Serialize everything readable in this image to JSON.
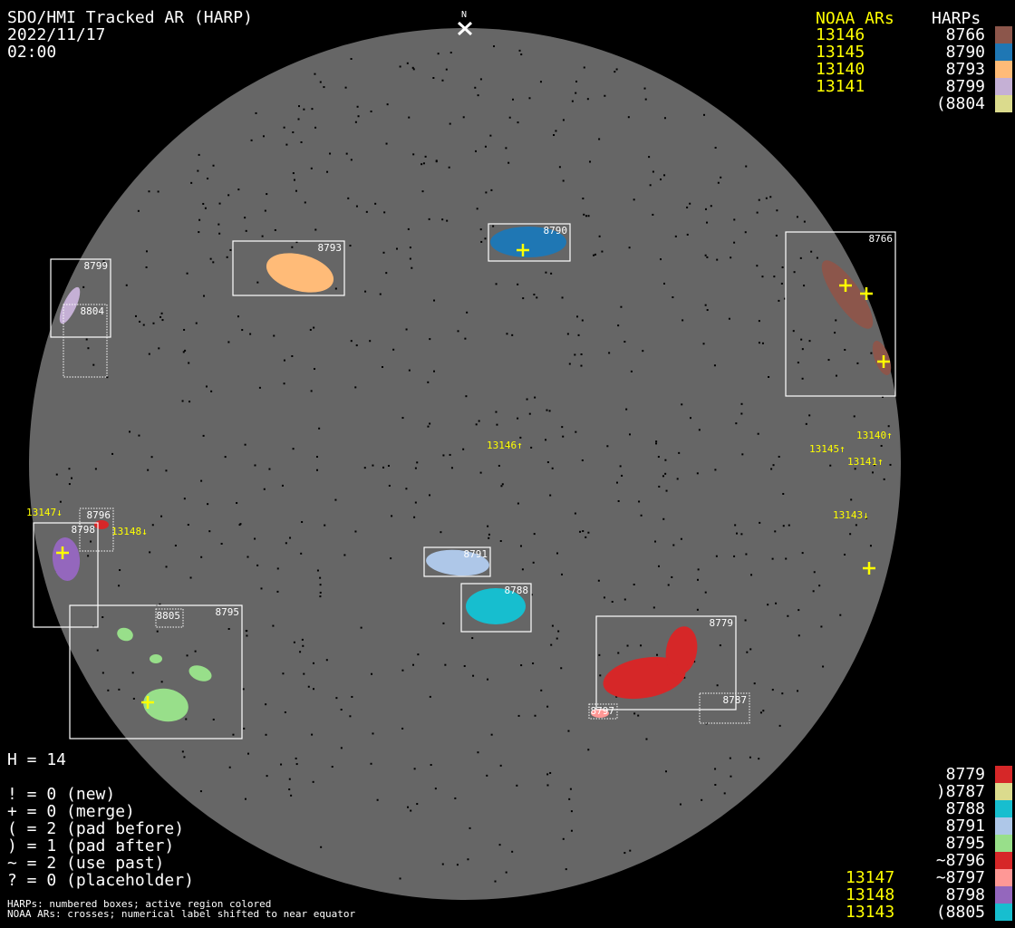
{
  "header": {
    "title": "SDO/HMI Tracked AR (HARP)",
    "date": "2022/11/17",
    "time": "02:00",
    "north_label": "N"
  },
  "top_list": {
    "noaa_header": "NOAA ARs",
    "harp_header": "HARPs",
    "rows": [
      {
        "noaa": "13146",
        "harp": "8766",
        "color": "#8c564b"
      },
      {
        "noaa": "13145",
        "harp": "8790",
        "color": "#1f77b4"
      },
      {
        "noaa": "13140",
        "harp": "8793",
        "color": "#ffbb78"
      },
      {
        "noaa": "13141",
        "harp": "8799",
        "color": "#c5b0d5"
      },
      {
        "noaa": "",
        "harp": "(8804",
        "color": "#dbdb8d"
      }
    ]
  },
  "bottom_list": {
    "rows": [
      {
        "noaa": "",
        "harp": "8779",
        "color": "#d62728"
      },
      {
        "noaa": "",
        "harp": ")8787",
        "color": "#dbdb8d"
      },
      {
        "noaa": "",
        "harp": "8788",
        "color": "#17becf"
      },
      {
        "noaa": "",
        "harp": "8791",
        "color": "#aec7e8"
      },
      {
        "noaa": "",
        "harp": "8795",
        "color": "#98df8a"
      },
      {
        "noaa": "",
        "harp": "~8796",
        "color": "#d62728"
      },
      {
        "noaa": "13147",
        "harp": "~8797",
        "color": "#ff9896"
      },
      {
        "noaa": "13148",
        "harp": "8798",
        "color": "#9467bd"
      },
      {
        "noaa": "13143",
        "harp": "(8805",
        "color": "#17becf"
      }
    ]
  },
  "legend": {
    "h_count": "H = 14",
    "lines": [
      "! = 0 (new)",
      "+ = 0 (merge)",
      "( = 2 (pad before)",
      ") = 1 (pad after)",
      "~ = 2 (use past)",
      "? = 0 (placeholder)"
    ]
  },
  "footer": [
    "HARPs: numbered boxes; active region colored",
    "NOAA ARs: crosses; numerical label shifted to near equator"
  ],
  "disk": {
    "color": "#666666",
    "background": "#000000"
  },
  "harp_boxes": [
    {
      "id": "8799",
      "style": "solid",
      "color": "#c5b0d5"
    },
    {
      "id": "8804",
      "style": "dotted",
      "color": "#dbdb8d"
    },
    {
      "id": "8793",
      "style": "solid",
      "color": "#ffbb78"
    },
    {
      "id": "8790",
      "style": "solid",
      "color": "#1f77b4"
    },
    {
      "id": "8766",
      "style": "solid",
      "color": "#8c564b"
    },
    {
      "id": "8796",
      "style": "dotted",
      "color": "#d62728"
    },
    {
      "id": "8798",
      "style": "solid",
      "color": "#9467bd"
    },
    {
      "id": "8795",
      "style": "solid",
      "color": "#98df8a"
    },
    {
      "id": "8805",
      "style": "dotted",
      "color": "#17becf"
    },
    {
      "id": "8791",
      "style": "solid",
      "color": "#aec7e8"
    },
    {
      "id": "8788",
      "style": "solid",
      "color": "#17becf"
    },
    {
      "id": "8779",
      "style": "solid",
      "color": "#d62728"
    },
    {
      "id": "8787",
      "style": "dotted",
      "color": "#dbdb8d"
    },
    {
      "id": "8797",
      "style": "dotted",
      "color": "#ff9896"
    }
  ],
  "noaa_labels": [
    {
      "id": "13140",
      "text": "13140↑"
    },
    {
      "id": "13146",
      "text": "13146↑"
    },
    {
      "id": "13145",
      "text": "13145↑"
    },
    {
      "id": "13141",
      "text": "13141↑"
    },
    {
      "id": "13143",
      "text": "13143↓"
    },
    {
      "id": "13147",
      "text": "13147↓"
    },
    {
      "id": "13148",
      "text": "13148↓"
    }
  ]
}
